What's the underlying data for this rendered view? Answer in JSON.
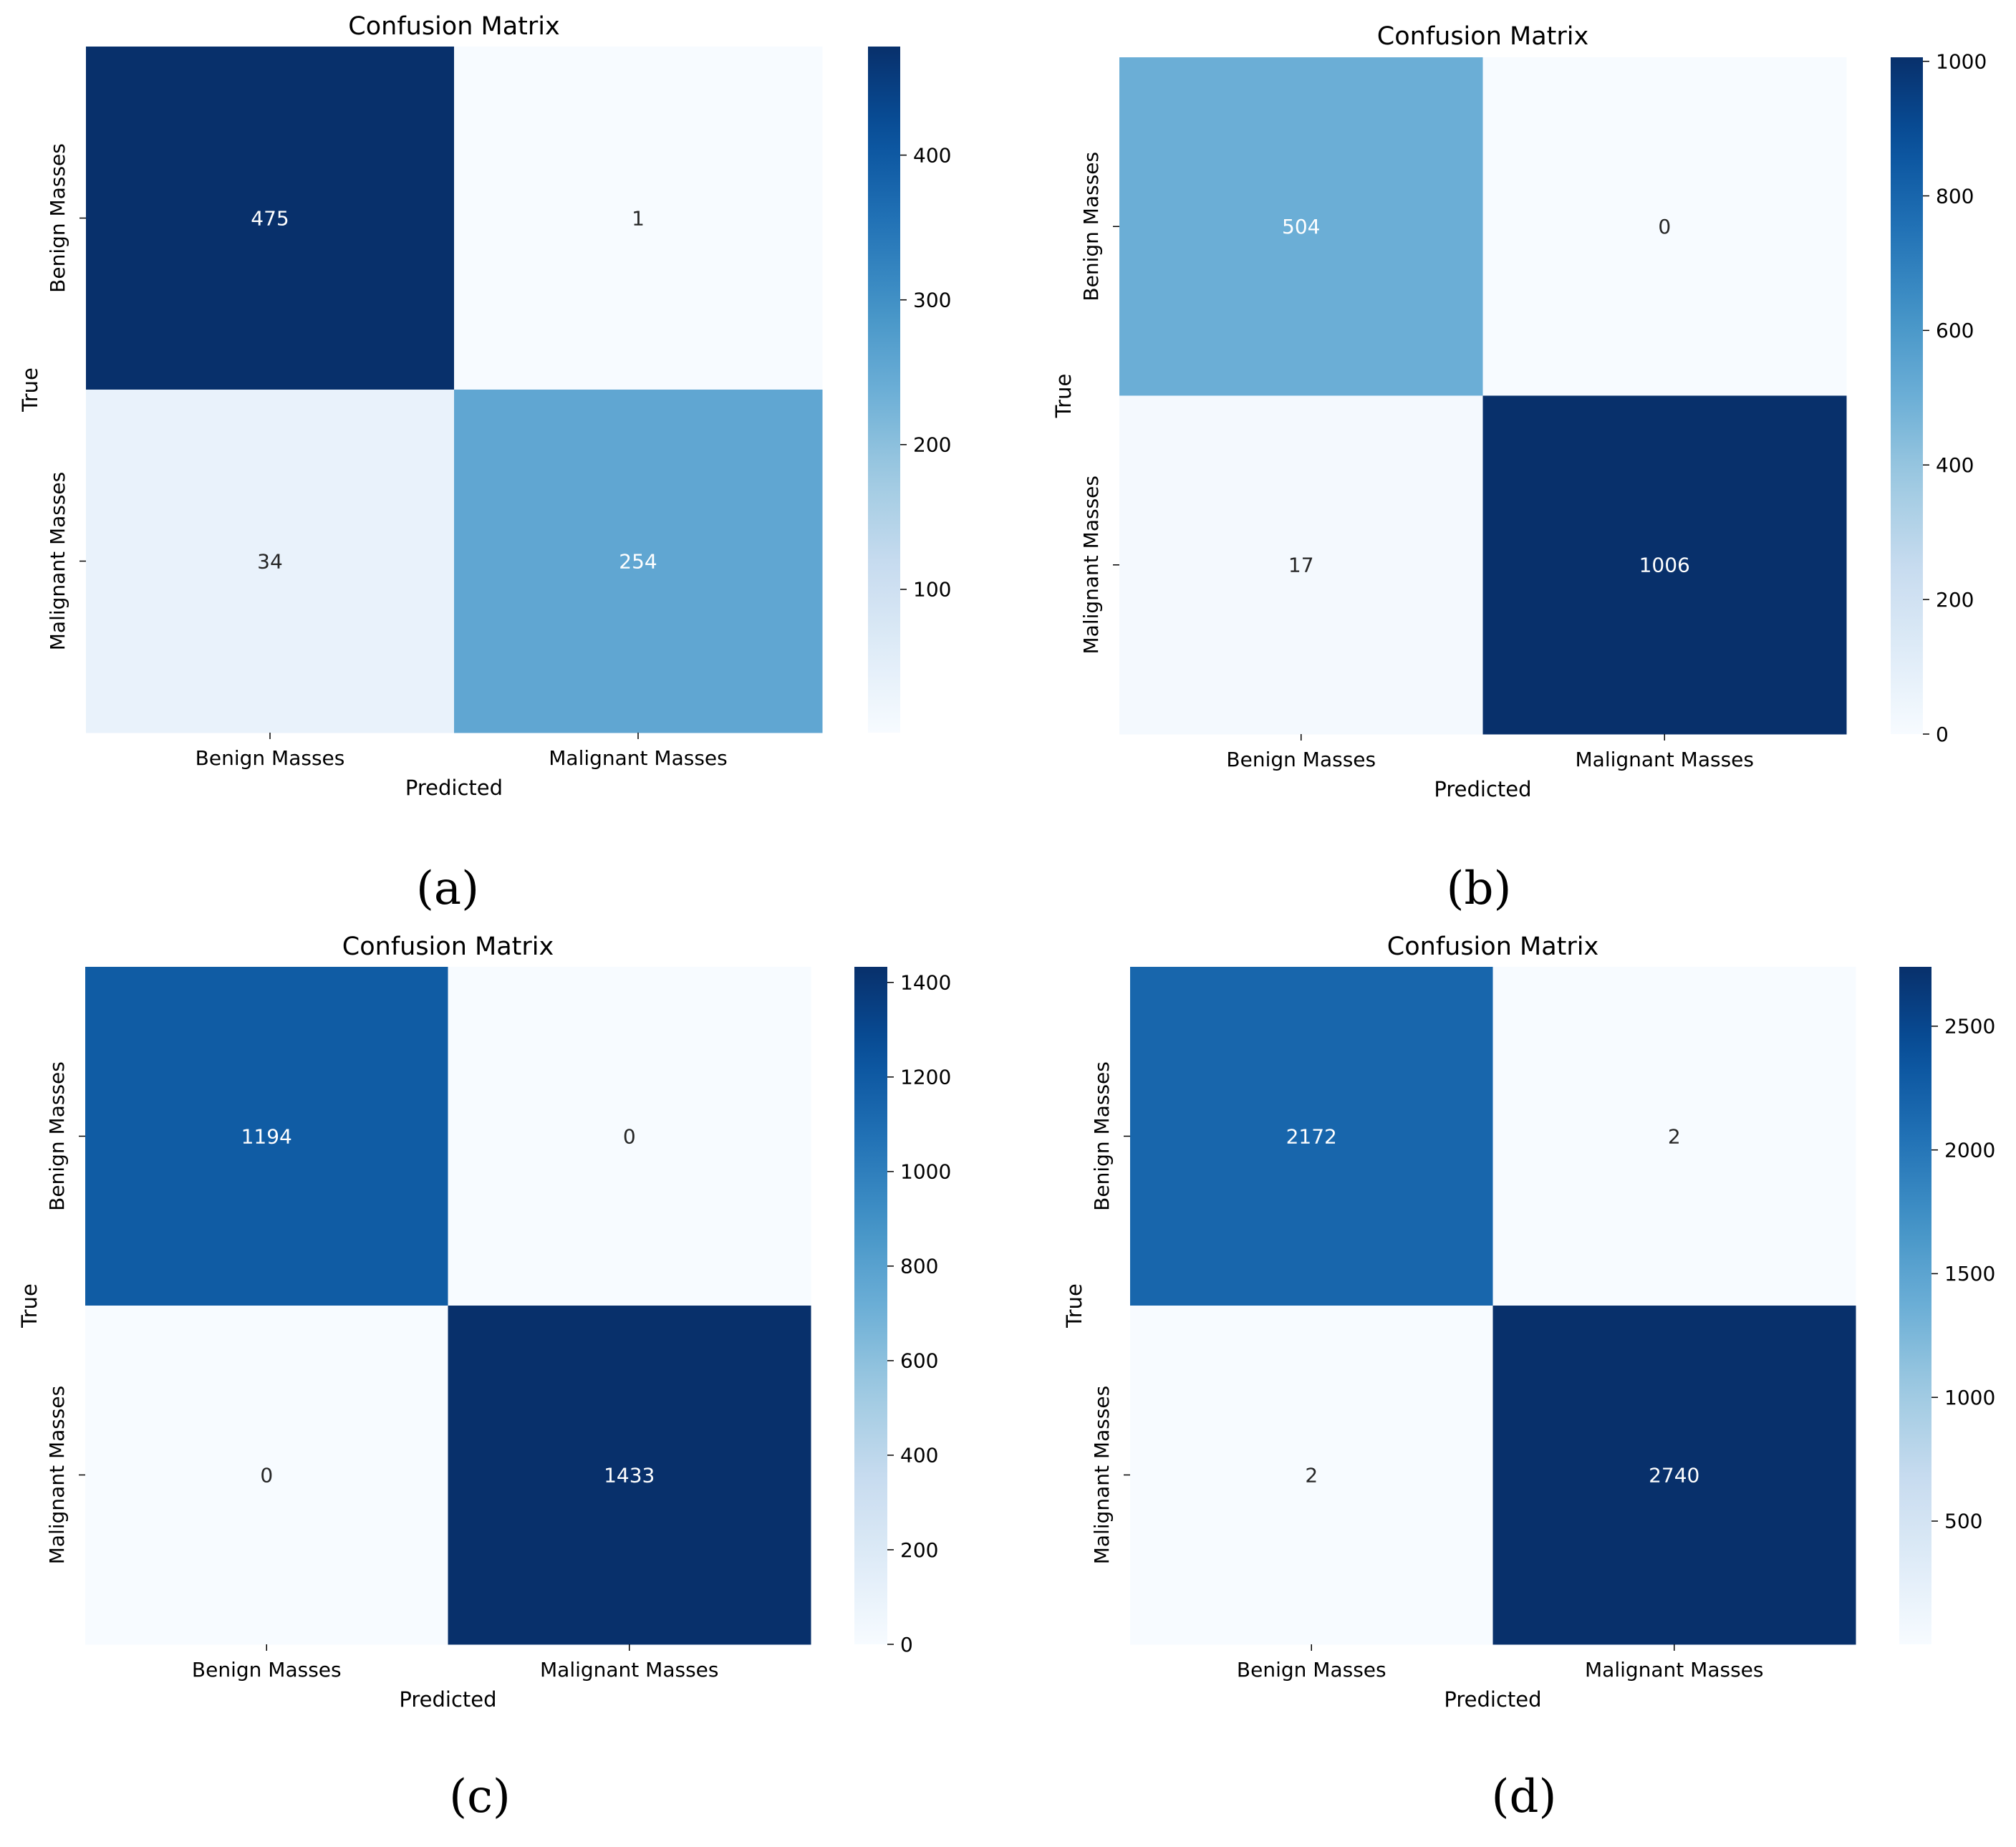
{
  "chart_data": [
    {
      "type": "heatmap",
      "panel": "(a)",
      "title": "Confusion Matrix",
      "xlabel": "Predicted",
      "ylabel": "True",
      "x_categories": [
        "Benign Masses",
        "Malignant Masses"
      ],
      "y_categories": [
        "Benign Masses",
        "Malignant Masses"
      ],
      "values": [
        [
          475,
          1
        ],
        [
          34,
          254
        ]
      ],
      "colormap": "Blues",
      "vmin": 1,
      "vmax": 475,
      "colorbar_ticks": [
        100,
        200,
        300,
        400
      ]
    },
    {
      "type": "heatmap",
      "panel": "(b)",
      "title": "Confusion Matrix",
      "xlabel": "Predicted",
      "ylabel": "True",
      "x_categories": [
        "Benign Masses",
        "Malignant Masses"
      ],
      "y_categories": [
        "Benign Masses",
        "Malignant Masses"
      ],
      "values": [
        [
          504,
          0
        ],
        [
          17,
          1006
        ]
      ],
      "colormap": "Blues",
      "vmin": 0,
      "vmax": 1006,
      "colorbar_ticks": [
        0,
        200,
        400,
        600,
        800,
        1000
      ]
    },
    {
      "type": "heatmap",
      "panel": "(c)",
      "title": "Confusion Matrix",
      "xlabel": "Predicted",
      "ylabel": "True",
      "x_categories": [
        "Benign Masses",
        "Malignant Masses"
      ],
      "y_categories": [
        "Benign Masses",
        "Malignant Masses"
      ],
      "values": [
        [
          1194,
          0
        ],
        [
          0,
          1433
        ]
      ],
      "colormap": "Blues",
      "vmin": 0,
      "vmax": 1433,
      "colorbar_ticks": [
        0,
        200,
        400,
        600,
        800,
        1000,
        1200,
        1400
      ]
    },
    {
      "type": "heatmap",
      "panel": "(d)",
      "title": "Confusion Matrix",
      "xlabel": "Predicted",
      "ylabel": "True",
      "x_categories": [
        "Benign Masses",
        "Malignant Masses"
      ],
      "y_categories": [
        "Benign Masses",
        "Malignant Masses"
      ],
      "values": [
        [
          2172,
          2
        ],
        [
          2,
          2740
        ]
      ],
      "colormap": "Blues",
      "vmin": 2,
      "vmax": 2740,
      "colorbar_ticks": [
        500,
        1000,
        1500,
        2000,
        2500
      ]
    }
  ],
  "colors": {
    "blues_light": "#f7fbff",
    "blues_dark": "#08306b",
    "axis": "#000000",
    "text_light": "#ffffff",
    "text_dark": "#262626"
  }
}
